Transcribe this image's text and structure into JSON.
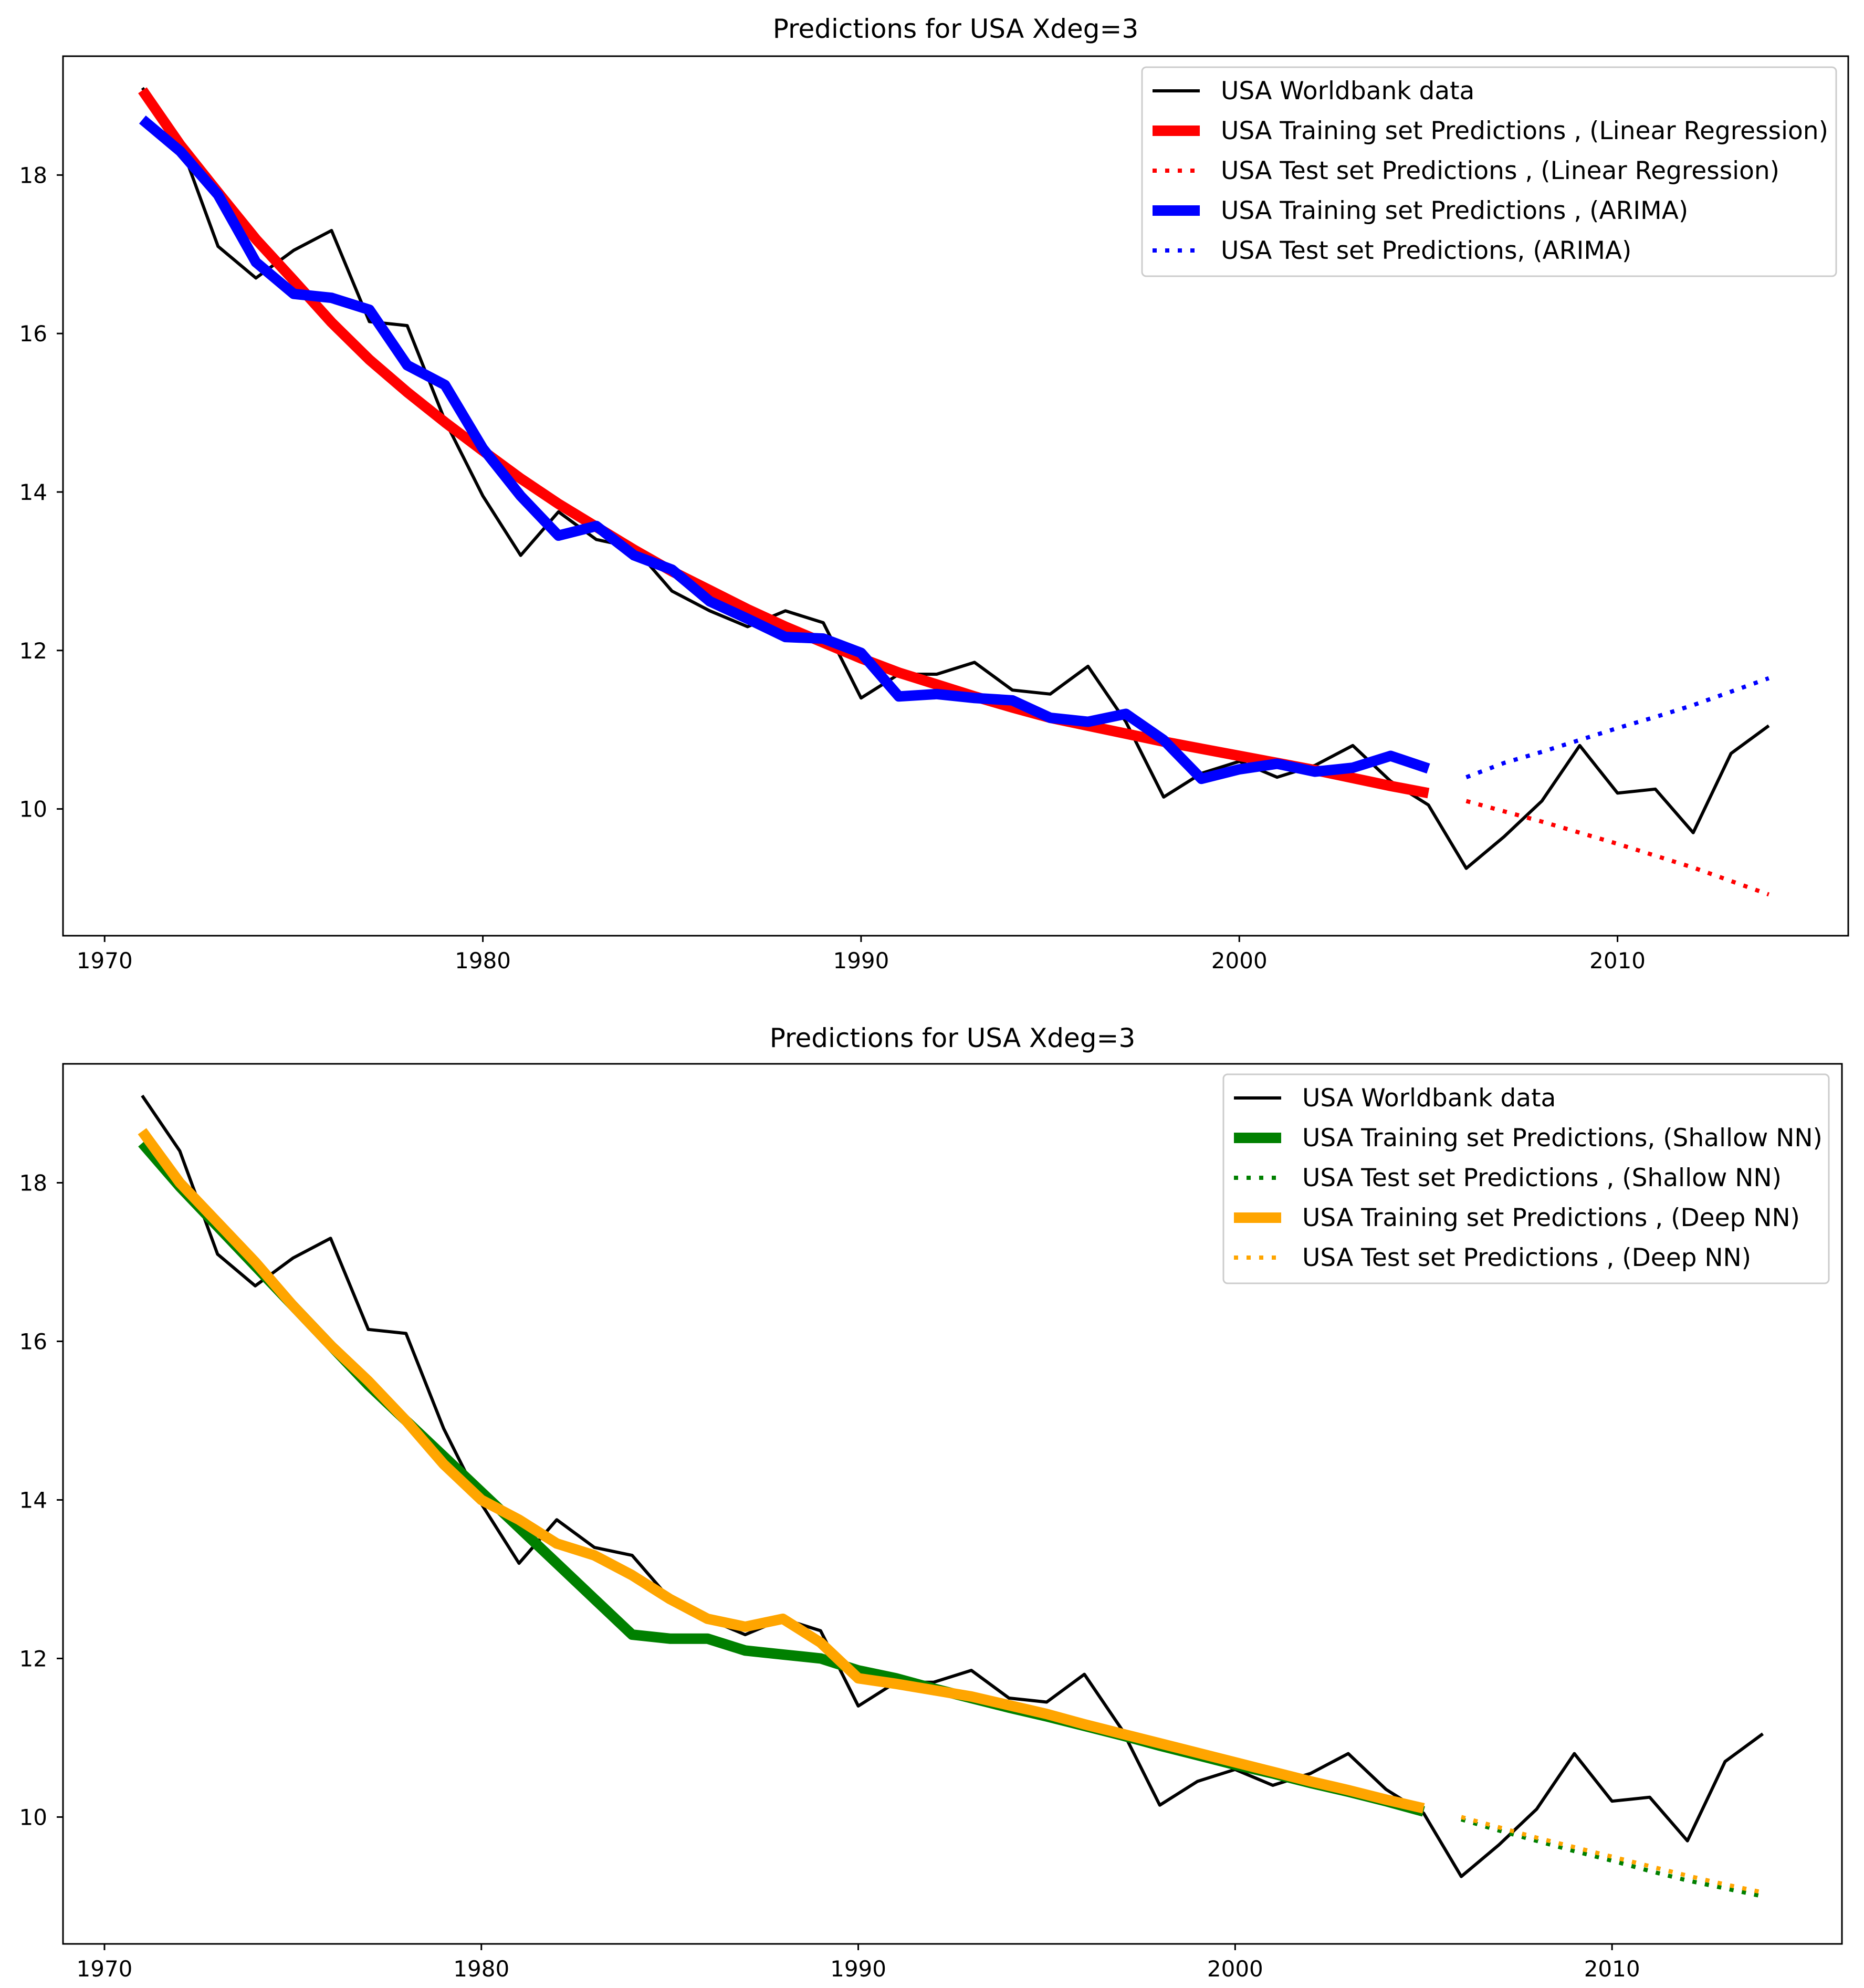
{
  "chart_data": [
    {
      "type": "line",
      "title": "Predictions for USA  Xdeg=3",
      "xlabel": "",
      "ylabel": "",
      "xlim": [
        1968.9,
        2016.1
      ],
      "ylim": [
        8.4,
        19.5
      ],
      "xticks": [
        1970,
        1980,
        1990,
        2000,
        2010
      ],
      "yticks": [
        10,
        12,
        14,
        16,
        18
      ],
      "grid": false,
      "legend_position": "top-right",
      "series": [
        {
          "name": "USA Worldbank data",
          "color": "#000000",
          "style": "solid-thin",
          "x": [
            1971,
            1972,
            1973,
            1974,
            1975,
            1976,
            1977,
            1978,
            1979,
            1980,
            1981,
            1982,
            1983,
            1984,
            1985,
            1986,
            1987,
            1988,
            1989,
            1990,
            1991,
            1992,
            1993,
            1994,
            1995,
            1996,
            1997,
            1998,
            1999,
            2000,
            2001,
            2002,
            2003,
            2004,
            2005,
            2006,
            2007,
            2008,
            2009,
            2010,
            2011,
            2012,
            2013,
            2014
          ],
          "values": [
            19.1,
            18.4,
            17.1,
            16.7,
            17.05,
            17.3,
            16.15,
            16.1,
            14.9,
            13.95,
            13.2,
            13.75,
            13.4,
            13.3,
            12.75,
            12.5,
            12.3,
            12.5,
            12.35,
            11.4,
            11.7,
            11.7,
            11.85,
            11.5,
            11.45,
            11.8,
            11.1,
            10.15,
            10.45,
            10.6,
            10.4,
            10.55,
            10.8,
            10.35,
            10.05,
            9.25,
            9.65,
            10.1,
            10.8,
            10.2,
            10.25,
            9.7,
            10.7,
            11.05
          ]
        },
        {
          "name": "USA Training set Predictions , (Linear Regression)",
          "color": "#ff0000",
          "style": "solid-thick",
          "x": [
            1971,
            1972,
            1973,
            1974,
            1975,
            1976,
            1977,
            1978,
            1979,
            1980,
            1981,
            1982,
            1983,
            1984,
            1985,
            1986,
            1987,
            1988,
            1989,
            1990,
            1991,
            1992,
            1993,
            1994,
            1995,
            1996,
            1997,
            1998,
            1999,
            2000,
            2001,
            2002,
            2003,
            2004,
            2005
          ],
          "values": [
            19.07,
            18.38,
            17.78,
            17.19,
            16.67,
            16.14,
            15.67,
            15.26,
            14.88,
            14.52,
            14.17,
            13.85,
            13.56,
            13.27,
            13.0,
            12.76,
            12.52,
            12.3,
            12.1,
            11.9,
            11.72,
            11.57,
            11.42,
            11.28,
            11.15,
            11.05,
            10.95,
            10.85,
            10.76,
            10.67,
            10.58,
            10.49,
            10.39,
            10.29,
            10.2
          ]
        },
        {
          "name": "USA Test set Predictions , (Linear Regression)",
          "color": "#ff0000",
          "style": "dotted",
          "x": [
            2006,
            2007,
            2008,
            2009,
            2010,
            2011,
            2012,
            2013,
            2014
          ],
          "values": [
            10.1,
            9.97,
            9.84,
            9.7,
            9.56,
            9.41,
            9.26,
            9.09,
            8.92
          ]
        },
        {
          "name": "USA Training set Predictions , (ARIMA)",
          "color": "#0000ff",
          "style": "solid-thick",
          "x": [
            1971,
            1972,
            1973,
            1974,
            1975,
            1976,
            1977,
            1978,
            1979,
            1980,
            1981,
            1982,
            1983,
            1984,
            1985,
            1986,
            1987,
            1988,
            1989,
            1990,
            1991,
            1992,
            1993,
            1994,
            1995,
            1996,
            1997,
            1998,
            1999,
            2000,
            2001,
            2002,
            2003,
            2004,
            2005
          ],
          "values": [
            18.7,
            18.3,
            17.75,
            16.9,
            16.5,
            16.45,
            16.3,
            15.6,
            15.35,
            14.55,
            13.95,
            13.45,
            13.57,
            13.2,
            13.02,
            12.62,
            12.4,
            12.17,
            12.15,
            11.97,
            11.42,
            11.45,
            11.4,
            11.37,
            11.15,
            11.1,
            11.2,
            10.87,
            10.38,
            10.5,
            10.57,
            10.47,
            10.52,
            10.67,
            10.51
          ]
        },
        {
          "name": "USA Test set Predictions, (ARIMA)",
          "color": "#0000ff",
          "style": "dotted",
          "x": [
            2006,
            2007,
            2008,
            2009,
            2010,
            2011,
            2012,
            2013,
            2014
          ],
          "values": [
            10.4,
            10.58,
            10.72,
            10.87,
            11.02,
            11.16,
            11.31,
            11.48,
            11.65
          ]
        }
      ]
    },
    {
      "type": "line",
      "title": "Predictions for USA  Xdeg=3",
      "xlabel": "",
      "ylabel": "",
      "xlim": [
        1968.9,
        2016.1
      ],
      "ylim": [
        8.4,
        19.5
      ],
      "xticks": [
        1970,
        1980,
        1990,
        2000,
        2010
      ],
      "yticks": [
        10,
        12,
        14,
        16,
        18
      ],
      "grid": false,
      "legend_position": "top-right",
      "series": [
        {
          "name": "USA Worldbank data",
          "color": "#000000",
          "style": "solid-thin",
          "x": [
            1971,
            1972,
            1973,
            1974,
            1975,
            1976,
            1977,
            1978,
            1979,
            1980,
            1981,
            1982,
            1983,
            1984,
            1985,
            1986,
            1987,
            1988,
            1989,
            1990,
            1991,
            1992,
            1993,
            1994,
            1995,
            1996,
            1997,
            1998,
            1999,
            2000,
            2001,
            2002,
            2003,
            2004,
            2005,
            2006,
            2007,
            2008,
            2009,
            2010,
            2011,
            2012,
            2013,
            2014
          ],
          "values": [
            19.1,
            18.4,
            17.1,
            16.7,
            17.05,
            17.3,
            16.15,
            16.1,
            14.9,
            13.95,
            13.2,
            13.75,
            13.4,
            13.3,
            12.75,
            12.5,
            12.3,
            12.5,
            12.35,
            11.4,
            11.7,
            11.7,
            11.85,
            11.5,
            11.45,
            11.8,
            11.1,
            10.15,
            10.45,
            10.6,
            10.4,
            10.55,
            10.8,
            10.35,
            10.05,
            9.25,
            9.65,
            10.1,
            10.8,
            10.2,
            10.25,
            9.7,
            10.7,
            11.05
          ]
        },
        {
          "name": "USA Training set Predictions, (Shallow NN)",
          "color": "#008000",
          "style": "solid-thick",
          "x": [
            1971,
            1972,
            1973,
            1974,
            1975,
            1976,
            1977,
            1978,
            1979,
            1980,
            1981,
            1982,
            1983,
            1984,
            1985,
            1986,
            1987,
            1988,
            1989,
            1990,
            1991,
            1992,
            1993,
            1994,
            1995,
            1996,
            1997,
            1998,
            1999,
            2000,
            2001,
            2002,
            2003,
            2004,
            2005
          ],
          "values": [
            18.5,
            17.95,
            17.45,
            16.95,
            16.45,
            15.95,
            15.45,
            15.0,
            14.55,
            14.1,
            13.65,
            13.2,
            12.75,
            12.3,
            12.25,
            12.25,
            12.1,
            12.05,
            12.0,
            11.85,
            11.75,
            11.62,
            11.5,
            11.38,
            11.27,
            11.15,
            11.03,
            10.9,
            10.78,
            10.66,
            10.55,
            10.43,
            10.32,
            10.2,
            10.07
          ]
        },
        {
          "name": "USA Test set Predictions , (Shallow NN)",
          "color": "#008000",
          "style": "dotted",
          "x": [
            2006,
            2007,
            2008,
            2009,
            2010,
            2011,
            2012,
            2013,
            2014
          ],
          "values": [
            9.97,
            9.83,
            9.7,
            9.57,
            9.45,
            9.32,
            9.2,
            9.1,
            9.0
          ]
        },
        {
          "name": "USA Training set Predictions , (Deep NN)",
          "color": "#ffa500",
          "style": "solid-thick",
          "x": [
            1971,
            1972,
            1973,
            1974,
            1975,
            1976,
            1977,
            1978,
            1979,
            1980,
            1981,
            1982,
            1983,
            1984,
            1985,
            1986,
            1987,
            1988,
            1989,
            1990,
            1991,
            1992,
            1993,
            1994,
            1995,
            1996,
            1997,
            1998,
            1999,
            2000,
            2001,
            2002,
            2003,
            2004,
            2005
          ],
          "values": [
            18.65,
            18.0,
            17.5,
            17.0,
            16.45,
            15.95,
            15.5,
            15.0,
            14.45,
            14.0,
            13.75,
            13.45,
            13.3,
            13.05,
            12.75,
            12.5,
            12.4,
            12.5,
            12.2,
            11.75,
            11.68,
            11.6,
            11.52,
            11.41,
            11.3,
            11.17,
            11.05,
            10.93,
            10.81,
            10.69,
            10.57,
            10.45,
            10.34,
            10.22,
            10.11
          ]
        },
        {
          "name": "USA Test set Predictions , (Deep NN)",
          "color": "#ffa500",
          "style": "dotted",
          "x": [
            2006,
            2007,
            2008,
            2009,
            2010,
            2011,
            2012,
            2013,
            2014
          ],
          "values": [
            10.0,
            9.87,
            9.74,
            9.62,
            9.5,
            9.38,
            9.26,
            9.15,
            9.05
          ]
        }
      ]
    }
  ]
}
